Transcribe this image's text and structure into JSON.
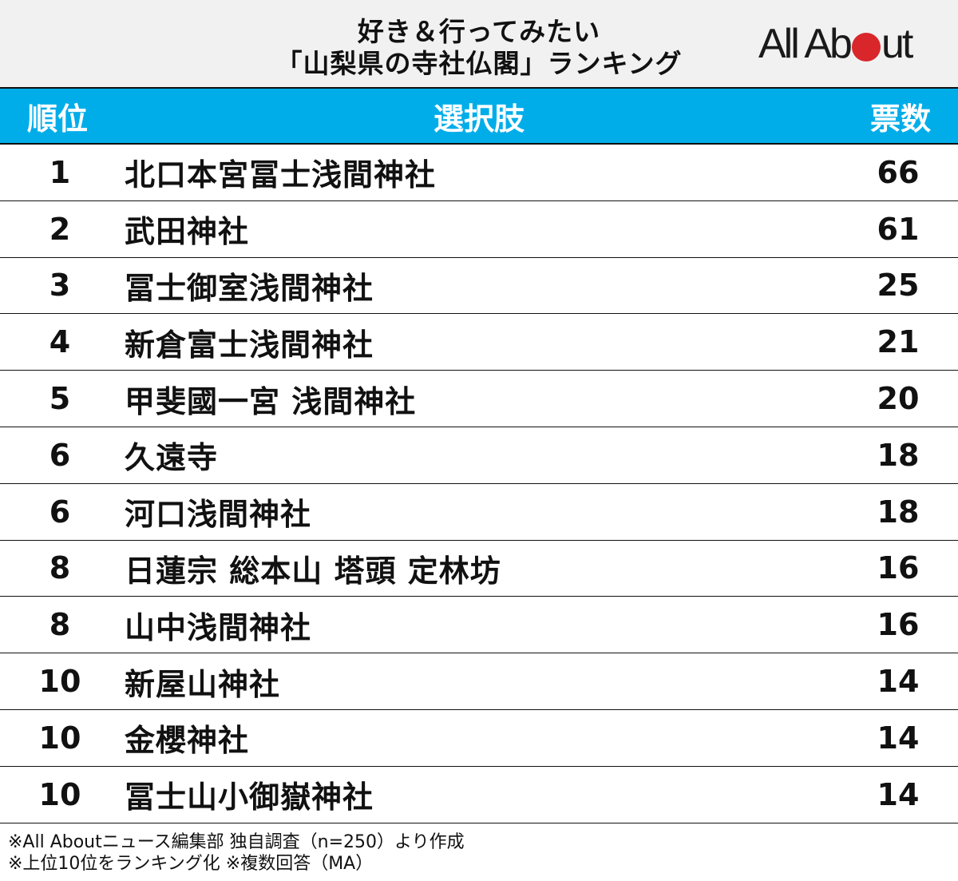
{
  "header": {
    "title_line1": "好き＆行ってみたい",
    "title_line2": "「山梨県の寺社仏閣」ランキング",
    "logo": {
      "text_before": "All Ab",
      "text_after": "ut",
      "dot_color": "#d8262a"
    }
  },
  "colors": {
    "header_bg": "#f1f1f1",
    "table_header_bg": "#00ade9",
    "table_header_text": "#ffffff",
    "border": "#111111"
  },
  "table": {
    "columns": [
      "順位",
      "選択肢",
      "票数"
    ],
    "rows": [
      {
        "rank": "1",
        "name": "北口本宮冨士浅間神社",
        "votes": "66"
      },
      {
        "rank": "2",
        "name": "武田神社",
        "votes": "61"
      },
      {
        "rank": "3",
        "name": "冨士御室浅間神社",
        "votes": "25"
      },
      {
        "rank": "4",
        "name": "新倉富士浅間神社",
        "votes": "21"
      },
      {
        "rank": "5",
        "name": "甲斐國一宮 浅間神社",
        "votes": "20"
      },
      {
        "rank": "6",
        "name": "久遠寺",
        "votes": "18"
      },
      {
        "rank": "6",
        "name": "河口浅間神社",
        "votes": "18"
      },
      {
        "rank": "8",
        "name": "日蓮宗 総本山 塔頭 定林坊",
        "votes": "16"
      },
      {
        "rank": "8",
        "name": "山中浅間神社",
        "votes": "16"
      },
      {
        "rank": "10",
        "name": "新屋山神社",
        "votes": "14"
      },
      {
        "rank": "10",
        "name": "金櫻神社",
        "votes": "14"
      },
      {
        "rank": "10",
        "name": "冨士山小御嶽神社",
        "votes": "14"
      }
    ]
  },
  "footer": {
    "note1": "※All Aboutニュース編集部 独自調査（n=250）より作成",
    "note2": "※上位10位をランキング化 ※複数回答（MA）"
  }
}
